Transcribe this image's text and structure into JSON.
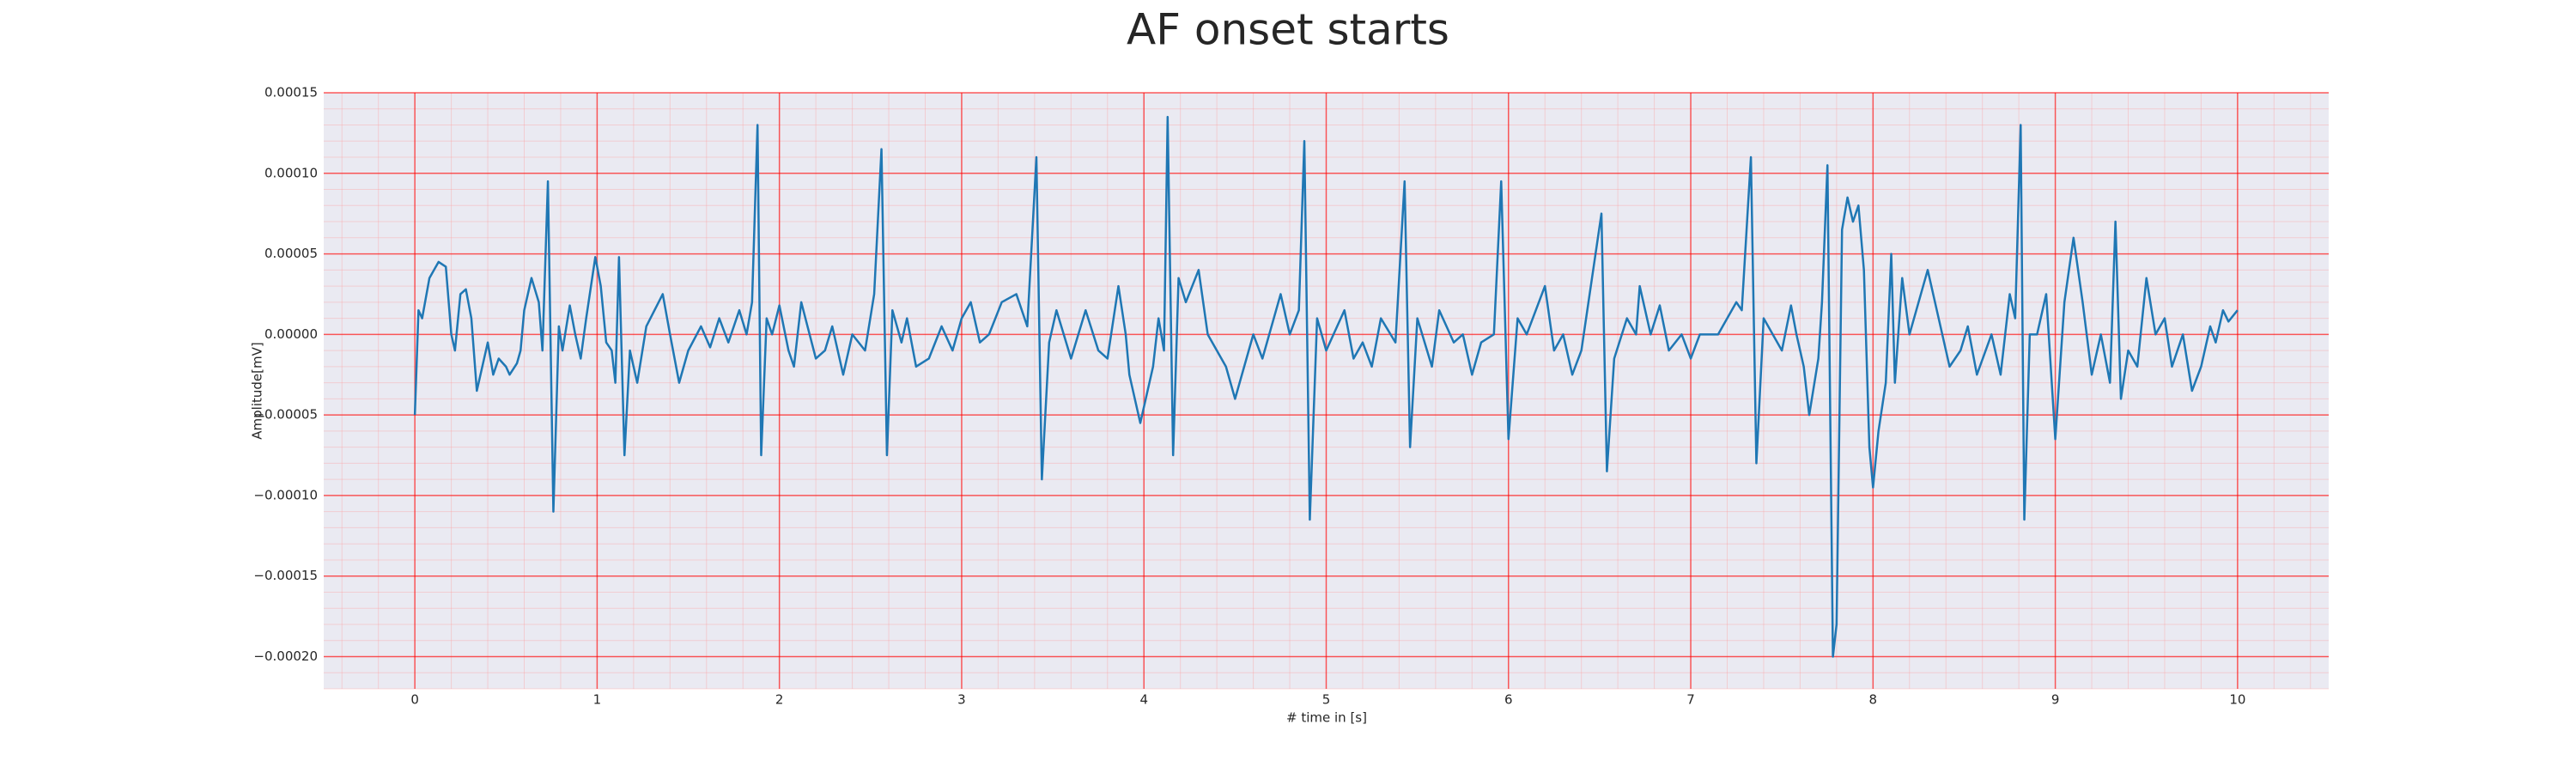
{
  "chart_data": {
    "type": "line",
    "title": "AF onset starts",
    "x_label": "# time in [s]",
    "y_label": "Amplitude[mV]",
    "color": "#1f77b4",
    "background": "#eaeaf2",
    "grid": true,
    "grid_color": "#ff0000",
    "minor_grid": true,
    "minor_grid_color": "#ff9999",
    "xlim": [
      -0.5,
      10.5
    ],
    "xticks": [
      0,
      1,
      2,
      3,
      4,
      5,
      6,
      7,
      8,
      9,
      10
    ],
    "ylim": [
      -0.00022,
      0.00015
    ],
    "yticks": [
      {
        "value": 0.00015,
        "label": "0.00015"
      },
      {
        "value": 0.0001,
        "label": "0.00010"
      },
      {
        "value": 5e-05,
        "label": "0.00005"
      },
      {
        "value": 0,
        "label": "0.00000"
      },
      {
        "value": -5e-05,
        "label": "−0.00005"
      },
      {
        "value": -0.0001,
        "label": "−0.00010"
      },
      {
        "value": -0.00015,
        "label": "−0.00015"
      },
      {
        "value": -0.0002,
        "label": "−0.00020"
      }
    ],
    "x": [
      0,
      0.02,
      0.04,
      0.08,
      0.13,
      0.17,
      0.2,
      0.22,
      0.25,
      0.28,
      0.31,
      0.34,
      0.37,
      0.4,
      0.43,
      0.46,
      0.5,
      0.52,
      0.56,
      0.58,
      0.6,
      0.64,
      0.68,
      0.7,
      0.73,
      0.76,
      0.79,
      0.81,
      0.85,
      0.88,
      0.91,
      0.94,
      0.99,
      1.02,
      1.05,
      1.08,
      1.1,
      1.12,
      1.15,
      1.18,
      1.22,
      1.27,
      1.36,
      1.4,
      1.45,
      1.5,
      1.57,
      1.62,
      1.67,
      1.72,
      1.78,
      1.82,
      1.85,
      1.88,
      1.9,
      1.93,
      1.96,
      2.0,
      2.05,
      2.08,
      2.12,
      2.2,
      2.25,
      2.29,
      2.35,
      2.4,
      2.47,
      2.52,
      2.56,
      2.59,
      2.62,
      2.67,
      2.7,
      2.75,
      2.82,
      2.89,
      2.95,
      3.0,
      3.05,
      3.1,
      3.15,
      3.22,
      3.3,
      3.36,
      3.41,
      3.44,
      3.48,
      3.52,
      3.6,
      3.68,
      3.75,
      3.8,
      3.86,
      3.9,
      3.92,
      3.98,
      4.05,
      4.08,
      4.11,
      4.13,
      4.16,
      4.19,
      4.23,
      4.3,
      4.35,
      4.45,
      4.5,
      4.6,
      4.65,
      4.75,
      4.8,
      4.85,
      4.88,
      4.91,
      4.95,
      5.0,
      5.1,
      5.15,
      5.2,
      5.25,
      5.3,
      5.38,
      5.43,
      5.46,
      5.5,
      5.58,
      5.62,
      5.7,
      5.75,
      5.8,
      5.85,
      5.92,
      5.96,
      6.0,
      6.05,
      6.1,
      6.2,
      6.25,
      6.3,
      6.35,
      6.4,
      6.51,
      6.54,
      6.58,
      6.65,
      6.7,
      6.72,
      6.78,
      6.83,
      6.88,
      6.95,
      7.0,
      7.05,
      7.15,
      7.25,
      7.28,
      7.33,
      7.36,
      7.4,
      7.45,
      7.5,
      7.55,
      7.58,
      7.62,
      7.65,
      7.7,
      7.72,
      7.75,
      7.78,
      7.8,
      7.83,
      7.86,
      7.89,
      7.92,
      7.95,
      7.98,
      8.0,
      8.03,
      8.07,
      8.1,
      8.12,
      8.16,
      8.2,
      8.3,
      8.36,
      8.42,
      8.48,
      8.52,
      8.57,
      8.65,
      8.7,
      8.75,
      8.78,
      8.81,
      8.83,
      8.86,
      8.9,
      8.95,
      9.0,
      9.05,
      9.1,
      9.15,
      9.2,
      9.25,
      9.3,
      9.33,
      9.36,
      9.4,
      9.45,
      9.5,
      9.55,
      9.6,
      9.64,
      9.7,
      9.75,
      9.8,
      9.85,
      9.88,
      9.92,
      9.95,
      10.0
    ],
    "values": [
      -5e-05,
      1.5e-05,
      1e-05,
      3.5e-05,
      4.5e-05,
      4.2e-05,
      0,
      -1e-05,
      2.5e-05,
      2.8e-05,
      1e-05,
      -3.5e-05,
      -2e-05,
      -5e-06,
      -2.5e-05,
      -1.5e-05,
      -2e-05,
      -2.5e-05,
      -1.8e-05,
      -1e-05,
      1.5e-05,
      3.5e-05,
      2e-05,
      -1e-05,
      9.5e-05,
      -0.00011,
      5e-06,
      -1e-05,
      1.8e-05,
      0,
      -1.5e-05,
      1e-05,
      4.8e-05,
      3e-05,
      -5e-06,
      -1e-05,
      -3e-05,
      4.8e-05,
      -7.5e-05,
      -1e-05,
      -3e-05,
      5e-06,
      2.5e-05,
      0,
      -3e-05,
      -1e-05,
      5e-06,
      -8e-06,
      1e-05,
      -5e-06,
      1.5e-05,
      0,
      2e-05,
      0.00013,
      -7.5e-05,
      1e-05,
      0,
      1.8e-05,
      -1e-05,
      -2e-05,
      2e-05,
      -1.5e-05,
      -1e-05,
      5e-06,
      -2.5e-05,
      0,
      -1e-05,
      2.5e-05,
      0.000115,
      -7.5e-05,
      1.5e-05,
      -5e-06,
      1e-05,
      -2e-05,
      -1.5e-05,
      5e-06,
      -1e-05,
      1e-05,
      2e-05,
      -5e-06,
      0,
      2e-05,
      2.5e-05,
      5e-06,
      0.00011,
      -9e-05,
      -5e-06,
      1.5e-05,
      -1.5e-05,
      1.5e-05,
      -1e-05,
      -1.5e-05,
      3e-05,
      0,
      -2.5e-05,
      -5.5e-05,
      -2e-05,
      1e-05,
      -1e-05,
      0.000135,
      -7.5e-05,
      3.5e-05,
      2e-05,
      4e-05,
      0,
      -2e-05,
      -4e-05,
      0,
      -1.5e-05,
      2.5e-05,
      0,
      1.5e-05,
      0.00012,
      -0.000115,
      1e-05,
      -1e-05,
      1.5e-05,
      -1.5e-05,
      -5e-06,
      -2e-05,
      1e-05,
      -5e-06,
      9.5e-05,
      -7e-05,
      1e-05,
      -2e-05,
      1.5e-05,
      -5e-06,
      0,
      -2.5e-05,
      -5e-06,
      0,
      9.5e-05,
      -6.5e-05,
      1e-05,
      0,
      3e-05,
      -1e-05,
      0,
      -2.5e-05,
      -1e-05,
      7.5e-05,
      -8.5e-05,
      -1.5e-05,
      1e-05,
      0,
      3e-05,
      0,
      1.8e-05,
      -1e-05,
      0,
      -1.5e-05,
      0,
      0,
      2e-05,
      1.5e-05,
      0.00011,
      -8e-05,
      1e-05,
      0,
      -1e-05,
      1.8e-05,
      0,
      -2e-05,
      -5e-05,
      -1.5e-05,
      2e-05,
      0.000105,
      -0.0002,
      -0.00018,
      6.5e-05,
      8.5e-05,
      7e-05,
      8e-05,
      4e-05,
      -7e-05,
      -9.5e-05,
      -6e-05,
      -3e-05,
      5e-05,
      -3e-05,
      3.5e-05,
      0,
      4e-05,
      1e-05,
      -2e-05,
      -1e-05,
      5e-06,
      -2.5e-05,
      0,
      -2.5e-05,
      2.5e-05,
      1e-05,
      0.00013,
      -0.000115,
      0,
      0,
      2.5e-05,
      -6.5e-05,
      2e-05,
      6e-05,
      2e-05,
      -2.5e-05,
      0,
      -3e-05,
      7e-05,
      -4e-05,
      -1e-05,
      -2e-05,
      3.5e-05,
      0,
      1e-05,
      -2e-05,
      0,
      -3.5e-05,
      -2e-05,
      5e-06,
      -5e-06,
      1.5e-05,
      8e-06,
      1.5e-05
    ]
  }
}
